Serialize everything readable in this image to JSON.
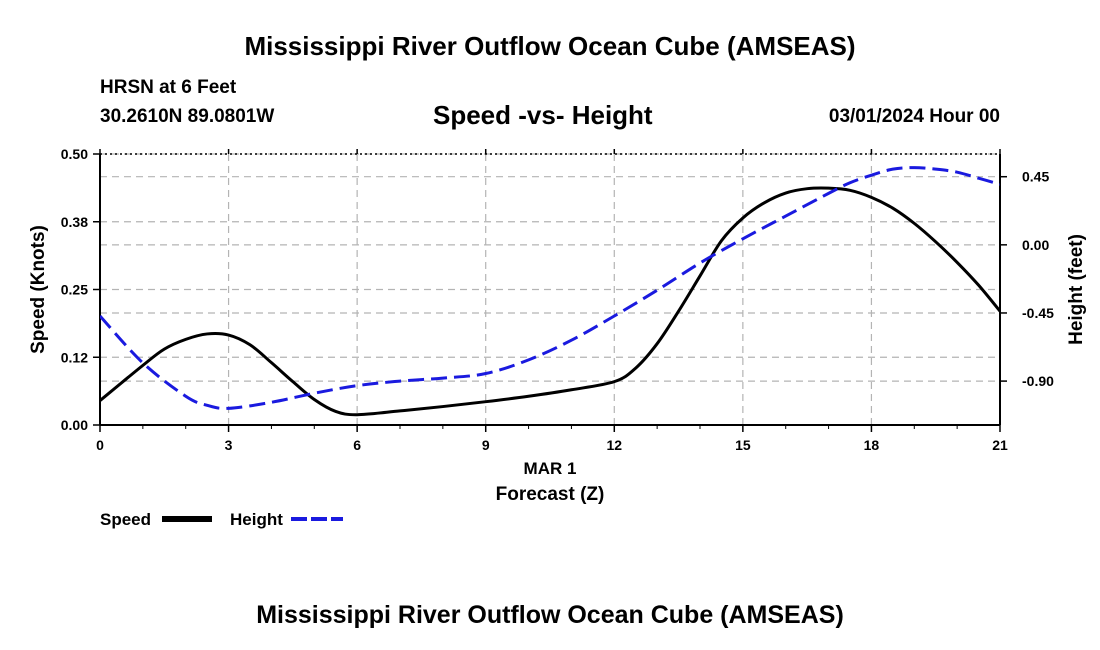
{
  "header": {
    "title": "Mississippi River Outflow Ocean Cube (AMSEAS)",
    "station": "HRSN at 6 Feet",
    "coords": "30.2610N  89.0801W",
    "subtitle": "Speed -vs- Height",
    "datetime": "03/01/2024 Hour 00"
  },
  "footer": {
    "title": "Mississippi River Outflow Ocean Cube (AMSEAS)"
  },
  "chart_data": {
    "type": "line",
    "title": "Speed -vs- Height",
    "xlabel": "Forecast (Z)",
    "xlabel_date": "MAR 1",
    "ylabel_left": "Speed (Knots)",
    "ylabel_right": "Height (feet)",
    "xlim": [
      0,
      21
    ],
    "ylim_left": [
      0,
      0.5
    ],
    "ylim_right": [
      -1.19,
      0.6
    ],
    "x_ticks": [
      0,
      3,
      6,
      9,
      12,
      15,
      18,
      21
    ],
    "x_tick_labels": [
      "0",
      "3",
      "6",
      "9",
      "12",
      "15",
      "18",
      "21"
    ],
    "y_left_ticks": [
      0,
      0.125,
      0.25,
      0.375,
      0.5
    ],
    "y_left_tick_labels": [
      "0.00",
      "0.12",
      "0.25",
      "0.38",
      "0.50"
    ],
    "y_right_ticks": [
      -0.9,
      -0.45,
      0.0,
      0.45
    ],
    "y_right_tick_labels": [
      "-0.90",
      "-0.45",
      "0.00",
      "0.45"
    ],
    "grid": true,
    "colors": {
      "speed": "#000000",
      "height": "#1a1adf",
      "grid": "#b4b4b4"
    },
    "series": [
      {
        "name": "Speed",
        "axis": "left",
        "style": "solid",
        "x": [
          0,
          1,
          1.5,
          2,
          2.5,
          3,
          3.5,
          4,
          4.5,
          5,
          5.5,
          6,
          7,
          8,
          9,
          10,
          11,
          12,
          12.5,
          13,
          13.5,
          14,
          14.5,
          15,
          15.5,
          16,
          16.5,
          17,
          17.5,
          18,
          18.5,
          19,
          19.5,
          20,
          20.5,
          21
        ],
        "values": [
          0.045,
          0.11,
          0.14,
          0.158,
          0.168,
          0.166,
          0.148,
          0.115,
          0.08,
          0.047,
          0.025,
          0.019,
          0.026,
          0.034,
          0.043,
          0.053,
          0.065,
          0.08,
          0.105,
          0.15,
          0.21,
          0.275,
          0.34,
          0.382,
          0.41,
          0.428,
          0.436,
          0.437,
          0.433,
          0.42,
          0.4,
          0.372,
          0.338,
          0.3,
          0.258,
          0.21
        ]
      },
      {
        "name": "Height",
        "axis": "right",
        "style": "dashed",
        "x": [
          0,
          1,
          2,
          2.5,
          3,
          4,
          5,
          6,
          7,
          8,
          9,
          10,
          11,
          12,
          13,
          14,
          15,
          16,
          17,
          17.5,
          18,
          18.5,
          19,
          19.5,
          20,
          20.5,
          21
        ],
        "values": [
          -0.47,
          -0.78,
          -1.0,
          -1.06,
          -1.08,
          -1.04,
          -0.98,
          -0.93,
          -0.9,
          -0.88,
          -0.85,
          -0.76,
          -0.63,
          -0.47,
          -0.3,
          -0.12,
          0.04,
          0.19,
          0.34,
          0.41,
          0.46,
          0.5,
          0.51,
          0.5,
          0.48,
          0.44,
          0.4
        ]
      }
    ],
    "legend": [
      {
        "label": "Speed",
        "series": "Speed"
      },
      {
        "label": "Height",
        "series": "Height"
      }
    ]
  }
}
